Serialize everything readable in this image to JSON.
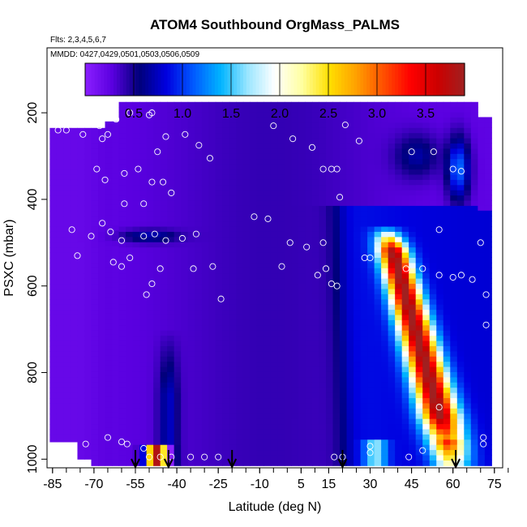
{
  "chart_data": {
    "type": "heatmap",
    "title": "ATOM4 Southbound OrgMass_PALMS",
    "flights_text": "Flts: 2,3,4,5,6,7",
    "dates_text": "MMDD: 0427,0429,0501,0503,0506,0509",
    "xlabel": "Latitude (deg N)",
    "ylabel": "PSXC (mbar)",
    "xlim": [
      -87,
      78
    ],
    "ylim": [
      1020,
      50
    ],
    "x_ticks": [
      -85,
      -70,
      -55,
      -40,
      -25,
      -10,
      5,
      15,
      30,
      45,
      60,
      75
    ],
    "y_ticks": [
      200,
      400,
      600,
      800,
      1000
    ],
    "colorbar": {
      "ticks": [
        "0.5",
        "1.0",
        "1.5",
        "2.0",
        "2.5",
        "3.0",
        "3.5"
      ],
      "tick_values": [
        0.5,
        1.0,
        1.5,
        2.0,
        2.5,
        3.0,
        3.5
      ],
      "range": [
        0,
        3.9
      ],
      "colors": [
        "#8B1FFF",
        "#5A00E0",
        "#00007A",
        "#0000E0",
        "#005AFF",
        "#00B4FF",
        "#9BE6FF",
        "#FFFFFF",
        "#FFFFA0",
        "#FFE000",
        "#FFA000",
        "#FF5000",
        "#FF0000",
        "#CC0000",
        "#A02020"
      ]
    },
    "arrow_latitudes": [
      -55,
      -43,
      -20,
      20,
      61
    ],
    "sample_points": [
      {
        "lat": -83,
        "p": 240
      },
      {
        "lat": -80,
        "p": 240
      },
      {
        "lat": -74,
        "p": 250
      },
      {
        "lat": -68,
        "p": 230
      },
      {
        "lat": -67,
        "p": 260
      },
      {
        "lat": -65,
        "p": 250
      },
      {
        "lat": -62,
        "p": 215
      },
      {
        "lat": -57,
        "p": 200
      },
      {
        "lat": -50,
        "p": 205
      },
      {
        "lat": -49,
        "p": 200
      },
      {
        "lat": -47,
        "p": 290
      },
      {
        "lat": -44,
        "p": 255
      },
      {
        "lat": -37,
        "p": 250
      },
      {
        "lat": -32,
        "p": 275
      },
      {
        "lat": -28,
        "p": 305
      },
      {
        "lat": -5,
        "p": 230
      },
      {
        "lat": 2,
        "p": 260
      },
      {
        "lat": 9,
        "p": 280
      },
      {
        "lat": 21,
        "p": 228
      },
      {
        "lat": 26,
        "p": 265
      },
      {
        "lat": 45,
        "p": 290
      },
      {
        "lat": 53,
        "p": 290
      },
      {
        "lat": 60,
        "p": 330
      },
      {
        "lat": 63,
        "p": 335
      },
      {
        "lat": -69,
        "p": 330
      },
      {
        "lat": -66,
        "p": 355
      },
      {
        "lat": -59,
        "p": 340
      },
      {
        "lat": -54,
        "p": 330
      },
      {
        "lat": -49,
        "p": 360
      },
      {
        "lat": -45,
        "p": 360
      },
      {
        "lat": -42,
        "p": 385
      },
      {
        "lat": -59,
        "p": 410
      },
      {
        "lat": -52,
        "p": 410
      },
      {
        "lat": 13,
        "p": 330
      },
      {
        "lat": 16,
        "p": 330
      },
      {
        "lat": 18,
        "p": 330
      },
      {
        "lat": 19,
        "p": 395
      },
      {
        "lat": -78,
        "p": 470
      },
      {
        "lat": -71,
        "p": 485
      },
      {
        "lat": -67,
        "p": 455
      },
      {
        "lat": -64,
        "p": 475
      },
      {
        "lat": -60,
        "p": 495
      },
      {
        "lat": -52,
        "p": 485
      },
      {
        "lat": -48,
        "p": 480
      },
      {
        "lat": -44,
        "p": 495
      },
      {
        "lat": -38,
        "p": 490
      },
      {
        "lat": -33,
        "p": 480
      },
      {
        "lat": -12,
        "p": 440
      },
      {
        "lat": -7,
        "p": 445
      },
      {
        "lat": 1,
        "p": 500
      },
      {
        "lat": 7,
        "p": 510
      },
      {
        "lat": 13,
        "p": 500
      },
      {
        "lat": -76,
        "p": 530
      },
      {
        "lat": -63,
        "p": 545
      },
      {
        "lat": -60,
        "p": 555
      },
      {
        "lat": -57,
        "p": 535
      },
      {
        "lat": -46,
        "p": 560
      },
      {
        "lat": -34,
        "p": 560
      },
      {
        "lat": -27,
        "p": 555
      },
      {
        "lat": -2,
        "p": 555
      },
      {
        "lat": 11,
        "p": 575
      },
      {
        "lat": 14,
        "p": 560
      },
      {
        "lat": 28,
        "p": 535
      },
      {
        "lat": 30,
        "p": 535
      },
      {
        "lat": 43,
        "p": 560
      },
      {
        "lat": 55,
        "p": 575
      },
      {
        "lat": 60,
        "p": 580
      },
      {
        "lat": 63,
        "p": 575
      },
      {
        "lat": 67,
        "p": 585
      },
      {
        "lat": 49,
        "p": 560
      },
      {
        "lat": 55,
        "p": 470
      },
      {
        "lat": 70,
        "p": 500
      },
      {
        "lat": -49,
        "p": 595
      },
      {
        "lat": -51,
        "p": 620
      },
      {
        "lat": -24,
        "p": 630
      },
      {
        "lat": 16,
        "p": 595
      },
      {
        "lat": 18,
        "p": 600
      },
      {
        "lat": 72,
        "p": 620
      },
      {
        "lat": 72,
        "p": 690
      },
      {
        "lat": 55,
        "p": 880
      },
      {
        "lat": -73,
        "p": 965
      },
      {
        "lat": -65,
        "p": 950
      },
      {
        "lat": -60,
        "p": 960
      },
      {
        "lat": -58,
        "p": 965
      },
      {
        "lat": -52,
        "p": 975
      },
      {
        "lat": -50,
        "p": 995
      },
      {
        "lat": -46,
        "p": 995
      },
      {
        "lat": -42,
        "p": 995
      },
      {
        "lat": -35,
        "p": 995
      },
      {
        "lat": -30,
        "p": 995
      },
      {
        "lat": -25,
        "p": 995
      },
      {
        "lat": 17,
        "p": 995
      },
      {
        "lat": 20,
        "p": 995
      },
      {
        "lat": 30,
        "p": 970
      },
      {
        "lat": 30,
        "p": 985
      },
      {
        "lat": 44,
        "p": 995
      },
      {
        "lat": 49,
        "p": 980
      },
      {
        "lat": 71,
        "p": 950
      },
      {
        "lat": 71,
        "p": 965
      }
    ]
  }
}
